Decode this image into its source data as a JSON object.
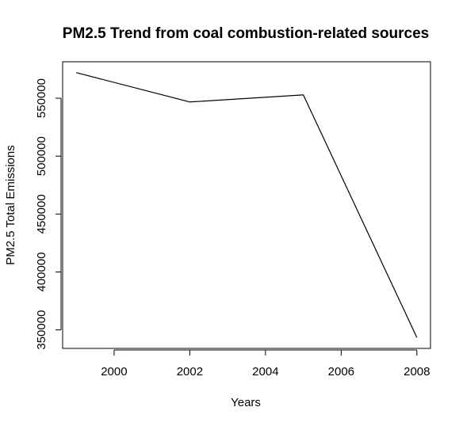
{
  "chart_data": {
    "type": "line",
    "title": "PM2.5 Trend from coal combustion-related sources",
    "xlabel": "Years",
    "ylabel": "PM2.5 Total Emissions",
    "x": [
      1999,
      2002,
      2005,
      2008
    ],
    "series": [
      {
        "values": [
          572126,
          546789,
          552881,
          343432
        ]
      }
    ],
    "xlim": [
      1998.64,
      2008.36
    ],
    "ylim": [
      334000,
      581500
    ],
    "xticks": [
      2000,
      2002,
      2004,
      2006,
      2008
    ],
    "yticks": [
      350000,
      400000,
      450000,
      500000,
      550000
    ],
    "xtick_labels": [
      "2000",
      "2002",
      "2004",
      "2006",
      "2008"
    ],
    "ytick_labels": [
      "350000",
      "400000",
      "450000",
      "500000",
      "550000"
    ],
    "line_color": "#000000",
    "grid": false,
    "legend": "none"
  }
}
